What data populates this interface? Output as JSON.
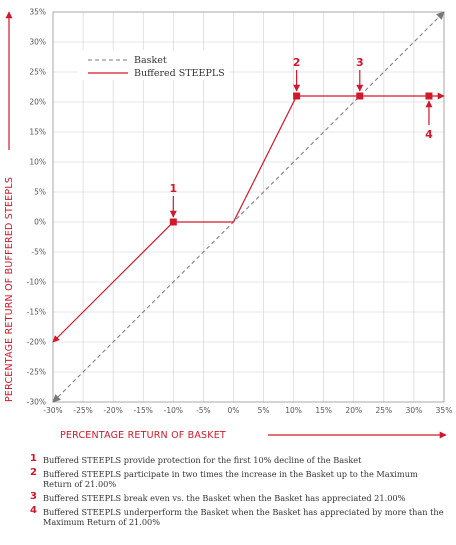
{
  "chart_data": {
    "type": "line",
    "xlabel": "PERCENTAGE RETURN OF BASKET",
    "ylabel": "PERCENTAGE RETURN OF BUFFERED STEEPLS",
    "xlim": [
      -30,
      35
    ],
    "ylim": [
      -30,
      35
    ],
    "x_ticks": [
      "-30%",
      "-25%",
      "-20%",
      "-15%",
      "-10%",
      "-5%",
      "0%",
      "5%",
      "10%",
      "15%",
      "20%",
      "25%",
      "30%",
      "35%"
    ],
    "y_ticks": [
      "35%",
      "30%",
      "25%",
      "20%",
      "15%",
      "10%",
      "5%",
      "0%",
      "-5%",
      "-10%",
      "-15%",
      "-20%",
      "-25%",
      "-30%"
    ],
    "grid": true,
    "legend_position": "top-left",
    "series": [
      {
        "name": "Basket",
        "style": "dashed",
        "color": "#777777",
        "x": [
          -30,
          35
        ],
        "y": [
          -30,
          35
        ]
      },
      {
        "name": "Buffered STEEPLS",
        "style": "solid",
        "color": "#d0192c",
        "x": [
          -30,
          -10,
          0,
          10.5,
          35
        ],
        "y": [
          -20,
          0,
          0,
          21,
          21
        ]
      }
    ],
    "markers": [
      {
        "label": "1",
        "x": -10,
        "y": 0
      },
      {
        "label": "2",
        "x": 10.5,
        "y": 21
      },
      {
        "label": "3",
        "x": 21,
        "y": 21
      },
      {
        "label": "4",
        "x": 32.5,
        "y": 21
      }
    ]
  },
  "notes": [
    {
      "num": "1",
      "text": "Buffered STEEPLS provide protection for the first 10% decline of the Basket"
    },
    {
      "num": "2",
      "text": "Buffered STEEPLS participate in two times the increase in the Basket up to the Maximum Return of 21.00%"
    },
    {
      "num": "3",
      "text": "Buffered STEEPLS break even vs. the Basket when the Basket has appreciated 21.00%"
    },
    {
      "num": "4",
      "text": "Buffered STEEPLS underperform the Basket when the Basket has appreciated by more than the Maximum Return of 21.00%"
    }
  ],
  "colors": {
    "accent": "#d0192c",
    "basket": "#777777",
    "grid": "#cfcfcf"
  }
}
